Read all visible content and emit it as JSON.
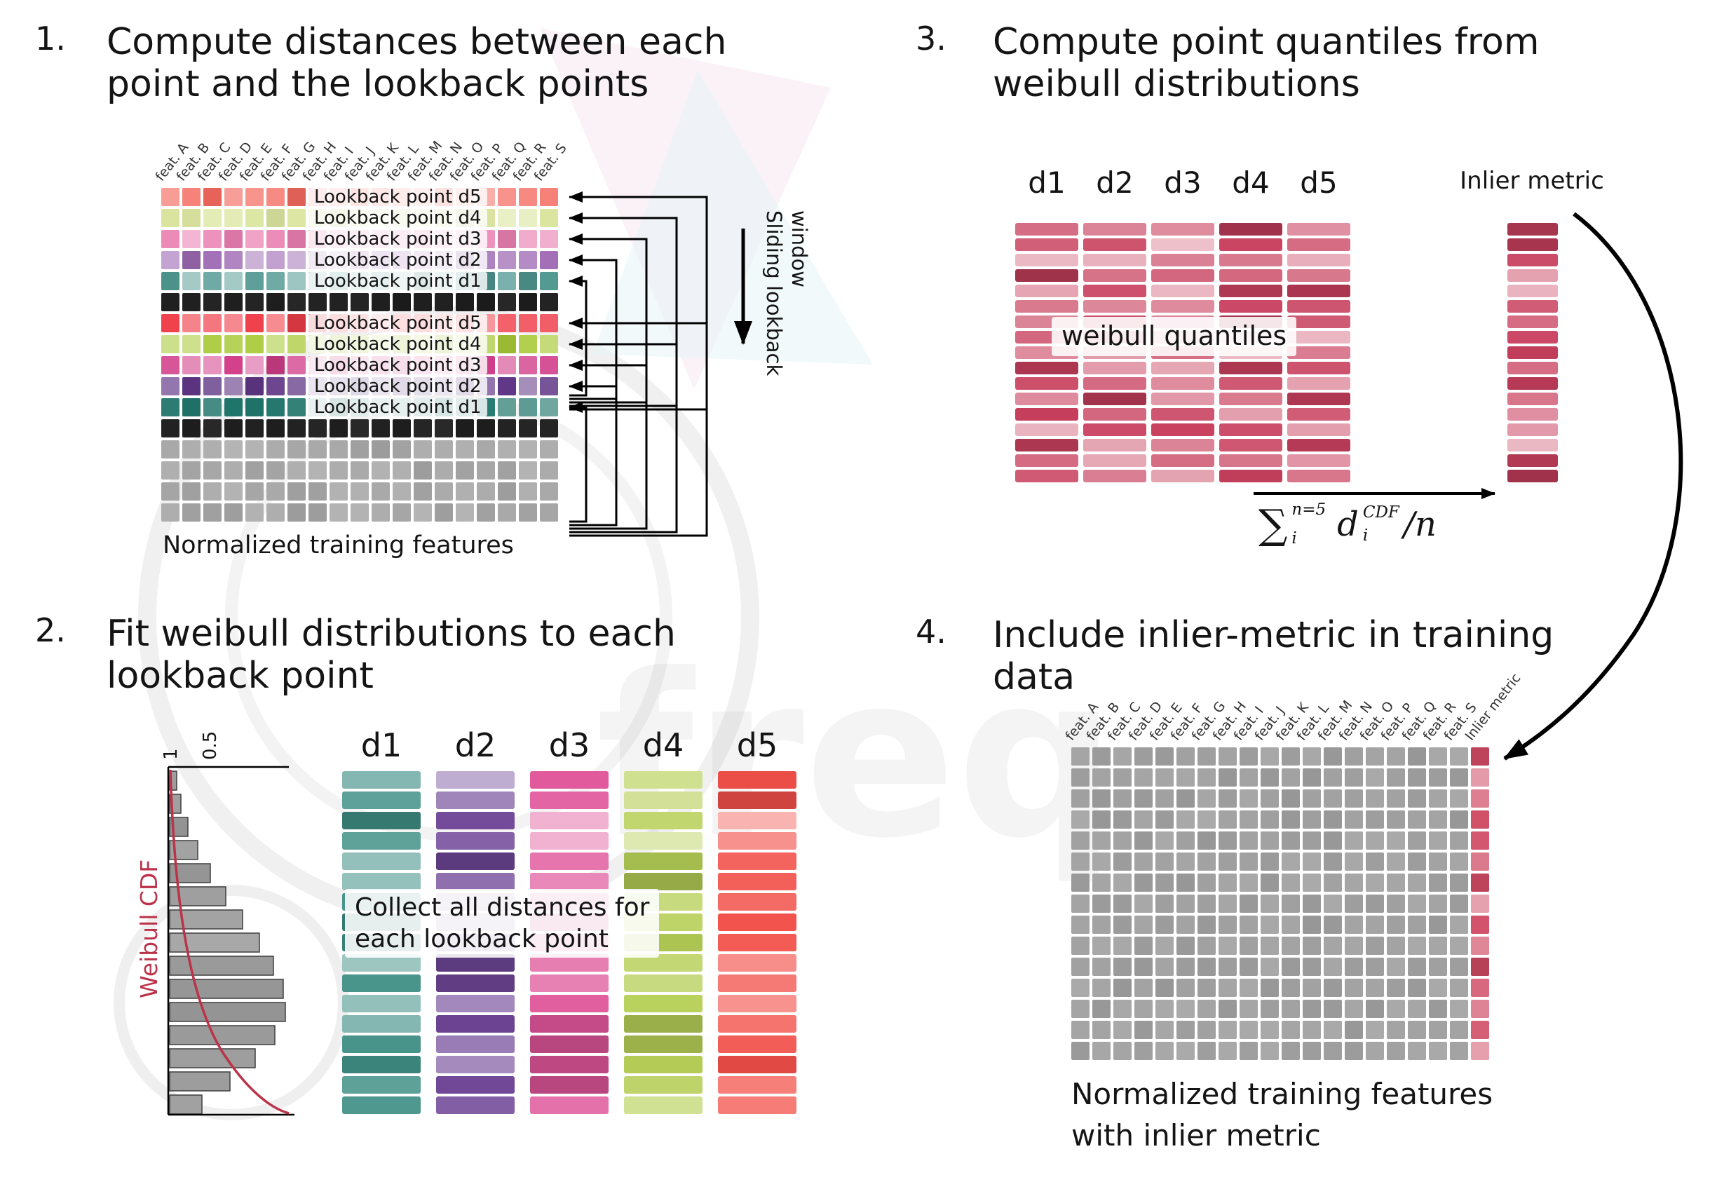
{
  "watermark": {
    "text": "freq"
  },
  "panel1": {
    "number": "1.",
    "title": "Compute distances between each\npoint and the lookback points",
    "caption": "Normalized training features",
    "sliding_label": "Sliding lookback\nwindow",
    "feature_headers": [
      "feat. A",
      "feat. B",
      "feat. C",
      "feat. D",
      "feat. E",
      "feat. F",
      "feat. G",
      "feat. H",
      "feat. I",
      "feat. J",
      "feat. K",
      "feat. L",
      "feat. M",
      "feat. N",
      "feat. O",
      "feat. P",
      "feat. Q",
      "feat. R",
      "feat. S"
    ],
    "lookback_labels": [
      "Lookback point d5",
      "Lookback point d4",
      "Lookback point d3",
      "Lookback point d2",
      "Lookback point d1"
    ],
    "group1_colors": [
      "#f4695f",
      "#dce6a0",
      "#ea7fb1",
      "#a06cb5",
      "#4f9790"
    ],
    "group2_colors": [
      "#f03e49",
      "#a9c938",
      "#d23f8a",
      "#5f3585",
      "#20756b"
    ],
    "black_color": "#1b1b1b",
    "gray_color": "#a6a6a6",
    "columns": 19,
    "gray_rows": 4
  },
  "panel2": {
    "number": "2.",
    "title": "Fit weibull distributions to each\nlookback point",
    "weibull_axis": {
      "label": "Weibull CDF",
      "tick_top": "1",
      "tick_mid": "0.5"
    },
    "hist_widths": [
      10,
      16,
      26,
      40,
      58,
      80,
      104,
      128,
      148,
      162,
      165,
      150,
      122,
      86,
      46
    ],
    "overlay": "Collect all distances for\neach lookback point",
    "columns": [
      {
        "label": "d1",
        "color": "#3e8e85"
      },
      {
        "label": "d2",
        "color": "#6f4697"
      },
      {
        "label": "d3",
        "color": "#e0569a"
      },
      {
        "label": "d4",
        "color": "#b6cf57"
      },
      {
        "label": "d5",
        "color": "#f25049"
      }
    ],
    "bars_per_column": 17
  },
  "panel3": {
    "number": "3.",
    "title": "Compute point quantiles from\nweibull distributions",
    "column_labels": [
      "d1",
      "d2",
      "d3",
      "d4",
      "d5"
    ],
    "overlay": "weibull quantiles",
    "inlier_label": "Inlier metric",
    "quantile_color": "#c8405e",
    "bars_per_column": 17,
    "formula": {
      "sum": "∑",
      "sum_sup": "n=5",
      "sum_sub": "i",
      "d": "d",
      "d_sup": "CDF",
      "d_sub": "i",
      "tail": "/n"
    }
  },
  "panel4": {
    "number": "4.",
    "title": "Include inlier-metric in training\ndata",
    "caption": "Normalized training features\nwith inlier metric",
    "feature_headers": [
      "feat. A",
      "feat. B",
      "feat. C",
      "feat. D",
      "feat. E",
      "feat. F",
      "feat. G",
      "feat. H",
      "feat. I",
      "feat. J",
      "feat. K",
      "feat. L",
      "feat. M",
      "feat. N",
      "feat. O",
      "feat. P",
      "feat. Q",
      "feat. R",
      "feat. S"
    ],
    "inlier_header": "Inlier metric",
    "rows": 15,
    "gray_color": "#9e9e9e",
    "inlier_color": "#cf4a63"
  }
}
